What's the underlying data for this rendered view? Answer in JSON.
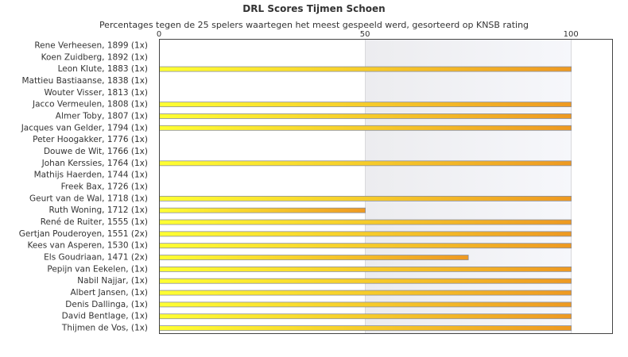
{
  "chart_data": {
    "type": "bar",
    "orientation": "horizontal",
    "title": "DRL Scores Tijmen Schoen",
    "subtitle": "Percentages tegen de 25 spelers waartegen het meest gespeeld werd, gesorteerd op KNSB rating",
    "xlim": [
      0,
      110
    ],
    "xticks": [
      0,
      50,
      100
    ],
    "grid": true,
    "bar_color_start": "#ffff33",
    "bar_color_end": "#ee9922",
    "categories": [
      "Rene Verheesen, 1899 (1x)",
      "Koen Zuidberg, 1892 (1x)",
      "Leon Klute, 1883 (1x)",
      "Mattieu Bastiaanse, 1838 (1x)",
      "Wouter Visser, 1813 (1x)",
      "Jacco Vermeulen, 1808 (1x)",
      "Almer Toby, 1807 (1x)",
      "Jacques van Gelder, 1794 (1x)",
      "Peter Hoogakker, 1776 (1x)",
      "Douwe de Wit, 1766 (1x)",
      "Johan Kerssies, 1764 (1x)",
      "Mathijs Haerden, 1744 (1x)",
      "Freek Bax, 1726 (1x)",
      "Geurt van de Wal, 1718 (1x)",
      "Ruth Woning, 1712 (1x)",
      "René de Ruiter, 1555 (1x)",
      "Gertjan Pouderoyen, 1551 (2x)",
      "Kees van Asperen, 1530 (1x)",
      "Els Goudriaan, 1471 (2x)",
      "Pepijn van Eekelen,  (1x)",
      "Nabil Najjar,  (1x)",
      "Albert Jansen,  (1x)",
      "Denis Dallinga,  (1x)",
      "David Bentlage,  (1x)",
      "Thijmen de Vos,  (1x)"
    ],
    "values": [
      0,
      0,
      100,
      0,
      0,
      100,
      100,
      100,
      0,
      0,
      100,
      0,
      0,
      100,
      50,
      100,
      100,
      100,
      75,
      100,
      100,
      100,
      100,
      100,
      100
    ]
  }
}
